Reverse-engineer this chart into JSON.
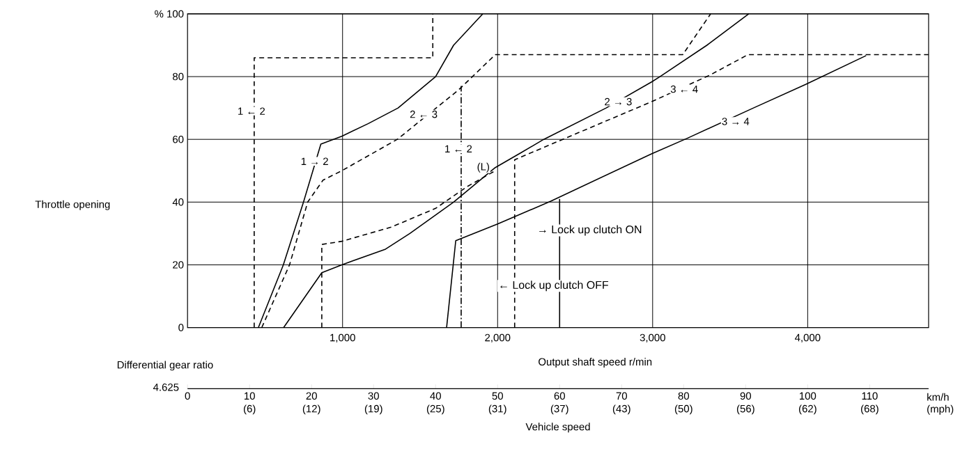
{
  "chart_data": {
    "type": "line",
    "xlabel": "Output shaft speed   r/min",
    "ylabel": "Throttle opening",
    "x2label": "Vehicle speed",
    "xlim": [
      0,
      4780
    ],
    "ylim": [
      0,
      100
    ],
    "xticks": [
      {
        "value": 1000,
        "label": "1,000"
      },
      {
        "value": 2000,
        "label": "2,000"
      },
      {
        "value": 3000,
        "label": "3,000"
      },
      {
        "value": 4000,
        "label": "4,000"
      }
    ],
    "yticks": [
      0,
      20,
      40,
      60,
      80,
      {
        "value": 100,
        "label": "% 100"
      }
    ],
    "x2lim": [
      0,
      119.5
    ],
    "x2ticks": [
      0,
      10,
      20,
      30,
      40,
      50,
      60,
      70,
      80,
      90,
      100,
      110
    ],
    "grid": true,
    "series": [
      {
        "color": "#000000",
        "line_style": "solid",
        "x": [
          457,
          618,
          748,
          860,
          995,
          1165,
          1358,
          1600,
          1716,
          1904
        ],
        "values": [
          0,
          20,
          40,
          58.5,
          61,
          65,
          70,
          80,
          90,
          100
        ]
      },
      {
        "color": "#000000",
        "line_style": "dashed",
        "x": [
          479,
          658,
          775,
          874,
          995,
          1353,
          1747,
          1985,
          3194,
          3374
        ],
        "values": [
          0,
          20,
          40,
          47,
          50,
          60,
          75.7,
          87,
          87,
          100
        ]
      },
      {
        "color": "#000000",
        "line_style": "dashed",
        "x": [
          430,
          430,
          1582,
          1582
        ],
        "values": [
          0,
          86,
          86,
          100
        ]
      },
      {
        "color": "#000000",
        "line_style": "solid",
        "x": [
          620,
          866,
          995,
          1277,
          1434,
          1716,
          1985,
          2150,
          2298,
          2700,
          2993,
          3047,
          3350,
          3620
        ],
        "values": [
          0,
          17.5,
          20,
          25,
          30,
          40,
          51,
          55.7,
          60,
          70,
          78.3,
          80,
          90,
          100
        ]
      },
      {
        "color": "#000000",
        "line_style": "dashed",
        "x": [
          866,
          866,
          995,
          1313,
          1600,
          1806,
          1985
        ],
        "values": [
          0,
          26.5,
          27.5,
          32,
          38,
          45,
          50
        ]
      },
      {
        "color": "#000000",
        "line_style": "dashed",
        "x": [
          2110,
          2110,
          2993,
          3370,
          3615,
          4780
        ],
        "values": [
          0,
          53.5,
          72,
          80.5,
          87,
          87
        ]
      },
      {
        "color": "#000000",
        "line_style": "dashdot",
        "x": [
          1765,
          1765
        ],
        "values": [
          0,
          77
        ]
      },
      {
        "color": "#000000",
        "line_style": "solid",
        "x": [
          1671,
          1730,
          2000,
          2343,
          2993,
          3226,
          3650,
          3987,
          4377
        ],
        "values": [
          0,
          27.7,
          33,
          40.3,
          55.4,
          60.4,
          70,
          77.5,
          86.7
        ]
      },
      {
        "color": "#000000",
        "line_style": "solid",
        "x": [
          2400,
          2400
        ],
        "values": [
          0,
          41
        ]
      }
    ],
    "annotations": [
      {
        "text": "1 ← 2",
        "x": 412,
        "y": 69
      },
      {
        "text": "1 → 2",
        "x": 820,
        "y": 53
      },
      {
        "text": "2 ← 3",
        "x": 1523,
        "y": 68
      },
      {
        "text": "1 ← 2",
        "x": 1747,
        "y": 57
      },
      {
        "text": "(L)",
        "x": 1908,
        "y": 51
      },
      {
        "text": "2 → 3",
        "x": 2778,
        "y": 72
      },
      {
        "text": "3 ← 4",
        "x": 3204,
        "y": 76
      },
      {
        "text": "3 → 4",
        "x": 3535,
        "y": 65.7
      },
      "**→** Lock up clutch ON",
      "**←** Lock up clutch OFF",
      "Differential gear ratio",
      "4.625",
      "km/h (mph)",
      "(6)",
      "(12)",
      "(19)",
      "(25)",
      "(31)",
      "(37)",
      "(43)",
      "(50)",
      "(56)",
      "(62)",
      "(68)"
    ]
  }
}
